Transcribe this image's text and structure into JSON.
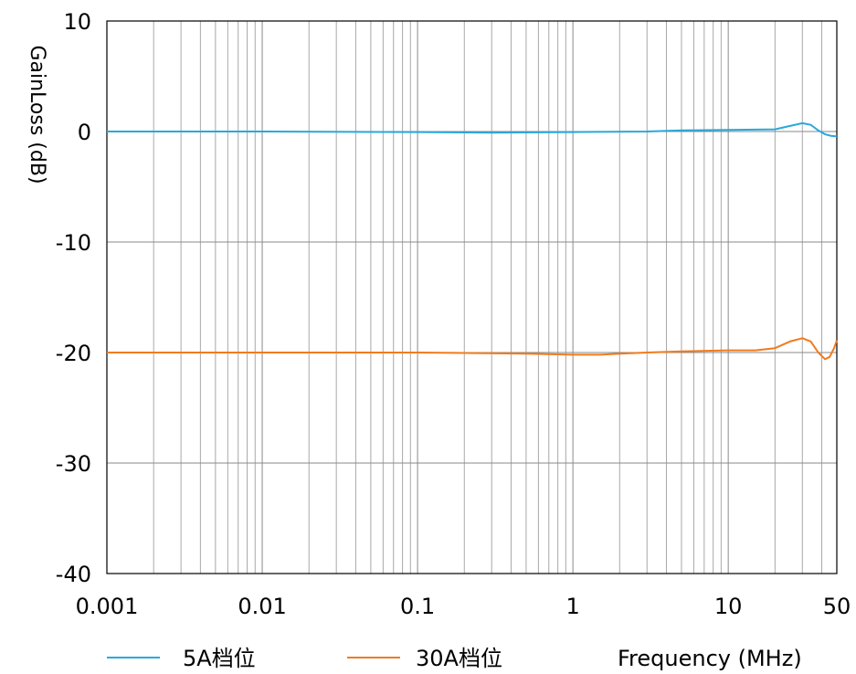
{
  "chart_data": {
    "type": "line",
    "title": "",
    "xlabel": "Frequency (MHz)",
    "ylabel": "GainLoss (dB)",
    "x_scale": "log",
    "xlim": [
      0.001,
      50
    ],
    "ylim": [
      -40,
      10
    ],
    "grid": true,
    "legend_position": "bottom",
    "x_ticks": [
      "0.001",
      "0.01",
      "0.1",
      "1",
      "10",
      "50"
    ],
    "y_ticks": [
      "10",
      "0",
      "-10",
      "-20",
      "-30",
      "-40"
    ],
    "series": [
      {
        "name": "5A档位",
        "color": "#29a8dc",
        "x": [
          0.001,
          0.01,
          0.1,
          0.3,
          1,
          3,
          5,
          10,
          20,
          25,
          30,
          34,
          38,
          42,
          46,
          50
        ],
        "y": [
          0.0,
          0.0,
          -0.05,
          -0.1,
          -0.05,
          0.0,
          0.1,
          0.15,
          0.2,
          0.5,
          0.75,
          0.6,
          0.1,
          -0.25,
          -0.4,
          -0.45
        ]
      },
      {
        "name": "30A档位",
        "color": "#f07b1e",
        "x": [
          0.001,
          0.01,
          0.1,
          0.5,
          1,
          1.5,
          2,
          3,
          5,
          10,
          15,
          20,
          25,
          30,
          34,
          38,
          42,
          45,
          48,
          50
        ],
        "y": [
          -20.0,
          -20.0,
          -20.0,
          -20.1,
          -20.2,
          -20.2,
          -20.1,
          -20.0,
          -19.9,
          -19.8,
          -19.8,
          -19.6,
          -19.0,
          -18.7,
          -19.0,
          -20.0,
          -20.6,
          -20.4,
          -19.6,
          -18.9
        ]
      }
    ]
  }
}
